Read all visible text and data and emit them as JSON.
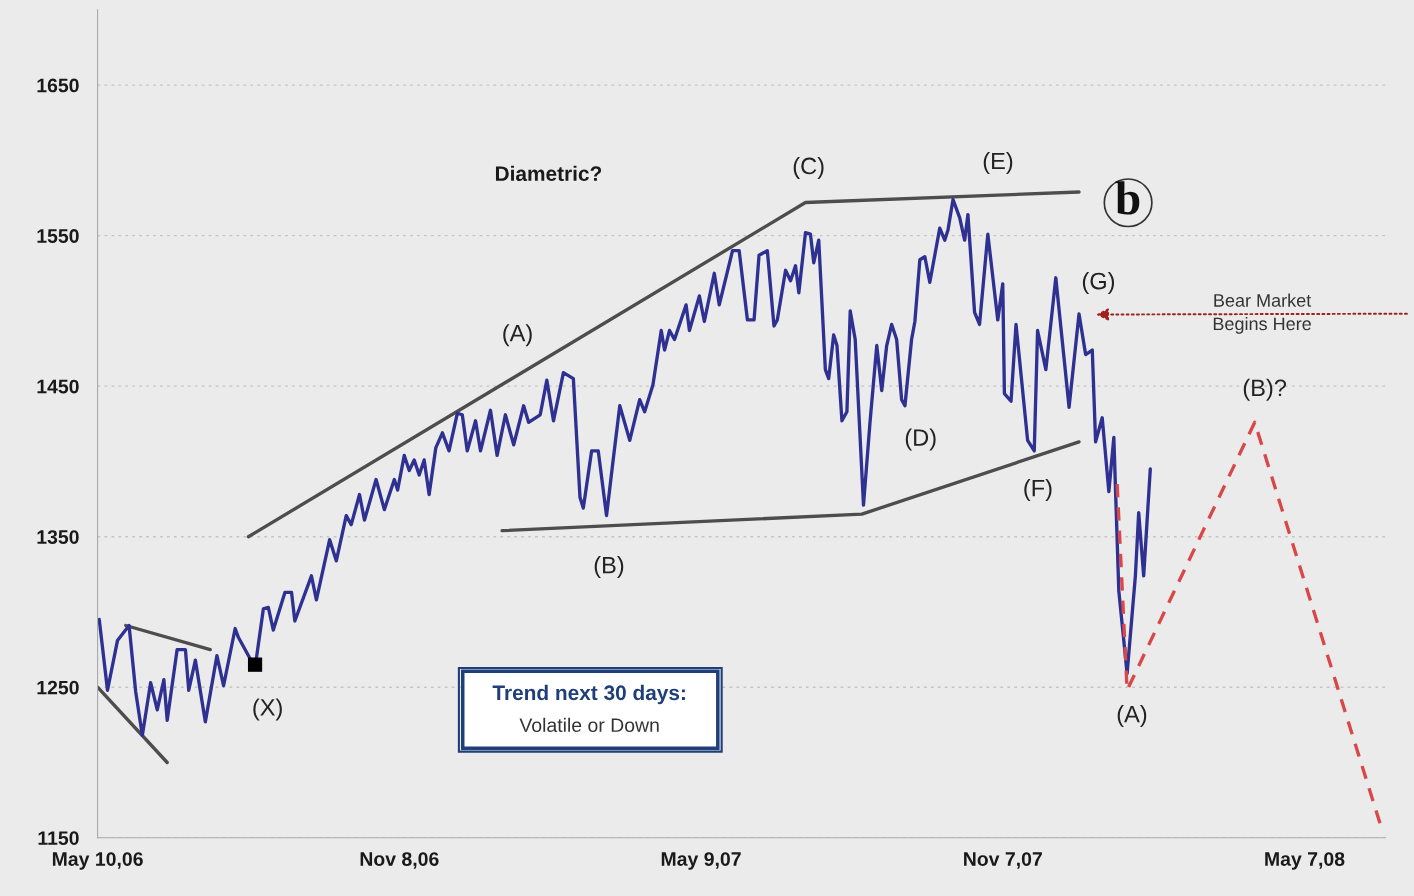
{
  "chart_data": {
    "type": "line",
    "title": "Diametric?",
    "xlim": [
      "2006-05-10",
      "2008-06-25"
    ],
    "ylim": [
      1150,
      1700
    ],
    "xticks": [
      {
        "value": "2006-05-10",
        "label": "May 10,06"
      },
      {
        "value": "2006-11-08",
        "label": "Nov 8,06"
      },
      {
        "value": "2007-05-09",
        "label": "May 9,07"
      },
      {
        "value": "2007-11-07",
        "label": "Nov 7,07"
      },
      {
        "value": "2008-05-07",
        "label": "May 7,08"
      }
    ],
    "yticks": [
      1150,
      1250,
      1350,
      1450,
      1550,
      1650
    ],
    "grid": "y",
    "series": [
      {
        "color": "#4d4d4d",
        "x": [
          "2006-05-10",
          "2006-06-21"
        ],
        "values": [
          1250,
          1200
        ]
      },
      {
        "color": "#4d4d4d",
        "x": [
          "2006-05-27",
          "2006-07-17"
        ],
        "values": [
          1291,
          1275
        ]
      },
      {
        "color": "#4d4d4d",
        "x": [
          "2006-08-09",
          "2007-07-11",
          "2007-12-23"
        ],
        "values": [
          1350,
          1572,
          1579
        ]
      },
      {
        "color": "#4d4d4d",
        "x": [
          "2007-01-09",
          "2007-08-14",
          "2007-12-23"
        ],
        "values": [
          1354,
          1365,
          1413
        ]
      },
      {
        "color": "#2e3192",
        "x": [
          "2006-05-11",
          "2006-05-16",
          "2006-05-22",
          "2006-05-29",
          "2006-06-02",
          "2006-06-06",
          "2006-06-11",
          "2006-06-15",
          "2006-06-19",
          "2006-06-21",
          "2006-06-27",
          "2006-07-02",
          "2006-07-04",
          "2006-07-08",
          "2006-07-14",
          "2006-07-21",
          "2006-07-25",
          "2006-08-01",
          "2006-08-03",
          "2006-08-13",
          "2006-08-18",
          "2006-08-21",
          "2006-08-24",
          "2006-08-31",
          "2006-09-04",
          "2006-09-06",
          "2006-09-16",
          "2006-09-19",
          "2006-09-27",
          "2006-10-01",
          "2006-10-07",
          "2006-10-10",
          "2006-10-15",
          "2006-10-18",
          "2006-10-25",
          "2006-10-30",
          "2006-11-05",
          "2006-11-07",
          "2006-11-11",
          "2006-11-14",
          "2006-11-17",
          "2006-11-20",
          "2006-11-23",
          "2006-11-26",
          "2006-11-30",
          "2006-12-04",
          "2006-12-08",
          "2006-12-13",
          "2006-12-16",
          "2006-12-19",
          "2006-12-24",
          "2006-12-27",
          "2007-01-02",
          "2007-01-06",
          "2007-01-11",
          "2007-01-16",
          "2007-01-22",
          "2007-01-25",
          "2007-02-01",
          "2007-02-05",
          "2007-02-09",
          "2007-02-15",
          "2007-02-21",
          "2007-02-25",
          "2007-02-27",
          "2007-03-04",
          "2007-03-08",
          "2007-03-13",
          "2007-03-17",
          "2007-03-21",
          "2007-03-27",
          "2007-04-02",
          "2007-04-05",
          "2007-04-10",
          "2007-04-15",
          "2007-04-17",
          "2007-04-20",
          "2007-04-23",
          "2007-04-30",
          "2007-05-02",
          "2007-05-08",
          "2007-05-11",
          "2007-05-17",
          "2007-05-20",
          "2007-05-28",
          "2007-06-01",
          "2007-06-06",
          "2007-06-10",
          "2007-06-13",
          "2007-06-18",
          "2007-06-22",
          "2007-06-24",
          "2007-06-29",
          "2007-07-02",
          "2007-07-05",
          "2007-07-07",
          "2007-07-11",
          "2007-07-14",
          "2007-07-16",
          "2007-07-19",
          "2007-07-23",
          "2007-07-25",
          "2007-07-28",
          "2007-07-30",
          "2007-08-02",
          "2007-08-05",
          "2007-08-07",
          "2007-08-10",
          "2007-08-15",
          "2007-08-19",
          "2007-08-23",
          "2007-08-26",
          "2007-08-29",
          "2007-09-01",
          "2007-09-04",
          "2007-09-07",
          "2007-09-09",
          "2007-09-13",
          "2007-09-15",
          "2007-09-18",
          "2007-09-21",
          "2007-09-24",
          "2007-09-27",
          "2007-09-30",
          "2007-10-03",
          "2007-10-05",
          "2007-10-08",
          "2007-10-12",
          "2007-10-15",
          "2007-10-17",
          "2007-10-21",
          "2007-10-24",
          "2007-10-29",
          "2007-11-04",
          "2007-11-07",
          "2007-11-08",
          "2007-11-12",
          "2007-11-15",
          "2007-11-22",
          "2007-11-26",
          "2007-11-28",
          "2007-12-03",
          "2007-12-09",
          "2007-12-17",
          "2007-12-23",
          "2007-12-27",
          "2007-12-31",
          "2008-01-02",
          "2008-01-06",
          "2008-01-10",
          "2008-01-13",
          "2008-01-16",
          "2008-01-21",
          "2008-01-26",
          "2008-01-28",
          "2008-01-31",
          "2008-02-04"
        ],
        "values": [
          1295,
          1248,
          1281,
          1291,
          1247,
          1218,
          1253,
          1235,
          1255,
          1228,
          1275,
          1275,
          1248,
          1268,
          1227,
          1271,
          1251,
          1289,
          1283,
          1263,
          1302,
          1303,
          1288,
          1313,
          1313,
          1294,
          1324,
          1308,
          1348,
          1334,
          1364,
          1358,
          1378,
          1361,
          1388,
          1368,
          1388,
          1381,
          1404,
          1394,
          1401,
          1391,
          1401,
          1378,
          1409,
          1419,
          1407,
          1432,
          1431,
          1407,
          1427,
          1407,
          1434,
          1404,
          1431,
          1411,
          1437,
          1426,
          1431,
          1454,
          1427,
          1459,
          1455,
          1376,
          1369,
          1407,
          1407,
          1364,
          1401,
          1437,
          1414,
          1441,
          1433,
          1451,
          1487,
          1474,
          1487,
          1481,
          1504,
          1487,
          1510,
          1493,
          1525,
          1504,
          1540,
          1540,
          1494,
          1494,
          1537,
          1540,
          1490,
          1494,
          1527,
          1520,
          1530,
          1512,
          1552,
          1551,
          1532,
          1547,
          1461,
          1455,
          1484,
          1477,
          1427,
          1433,
          1500,
          1481,
          1371,
          1427,
          1477,
          1447,
          1477,
          1491,
          1481,
          1441,
          1437,
          1481,
          1493,
          1534,
          1536,
          1519,
          1537,
          1555,
          1547,
          1554,
          1574,
          1562,
          1547,
          1564,
          1499,
          1491,
          1551,
          1494,
          1518,
          1445,
          1440,
          1491,
          1414,
          1407,
          1487,
          1461,
          1522,
          1436,
          1498,
          1471,
          1474,
          1413,
          1429,
          1380,
          1416,
          1314,
          1259,
          1324,
          1366,
          1324,
          1395
        ]
      },
      {
        "color": "#d94848",
        "line_style": "dashed",
        "x": [
          "2008-01-15",
          "2008-01-21",
          "2008-04-07",
          "2008-06-22"
        ],
        "values": [
          1385,
          1248,
          1426,
          1158
        ]
      },
      {
        "type": "scatter",
        "marker": "square",
        "color": "#000000",
        "x": [
          "2006-08-13"
        ],
        "values": [
          1265
        ]
      }
    ],
    "annotations": [
      "Trend next 30 days:",
      "Volatile or Down",
      "Bear Market\nBegins Here",
      "b",
      "(X)",
      "(A)",
      "(B)",
      "(C)",
      "(D)",
      "(E)",
      "(F)",
      "(G)",
      "(A)",
      "(B)?"
    ]
  }
}
